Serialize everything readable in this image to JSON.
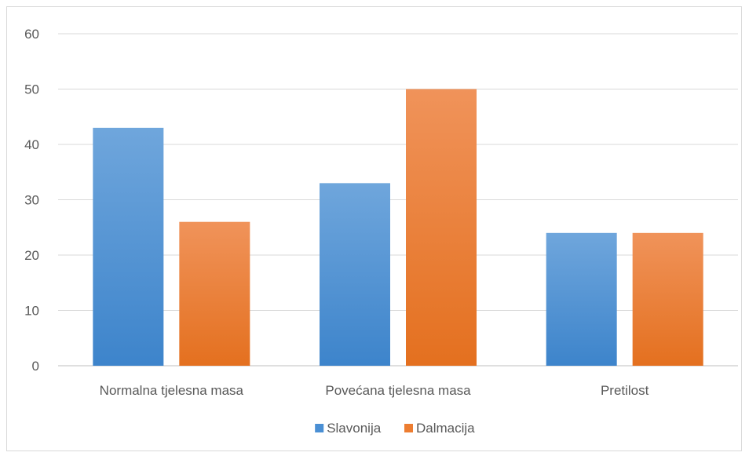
{
  "chart_data": {
    "type": "bar",
    "categories": [
      "Normalna tjelesna masa",
      "Povećana tjelesna masa",
      "Pretilost"
    ],
    "series": [
      {
        "name": "Slavonija",
        "values": [
          43,
          33,
          24
        ],
        "color": "#4a8fd4"
      },
      {
        "name": "Dalmacija",
        "values": [
          26,
          50,
          24
        ],
        "color": "#ed7d31"
      }
    ],
    "title": "",
    "xlabel": "",
    "ylabel": "",
    "ylim": [
      0,
      60
    ],
    "yticks": [
      0,
      10,
      20,
      30,
      40,
      50,
      60
    ],
    "grid": true,
    "legend": "bottom-center"
  }
}
